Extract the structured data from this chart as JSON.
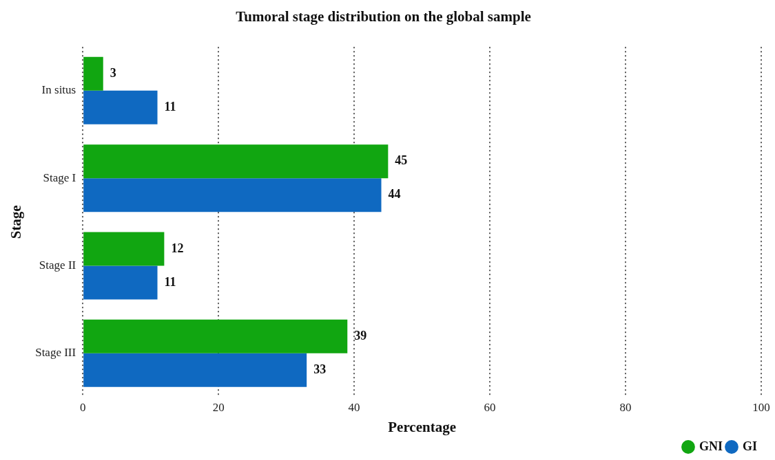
{
  "chart_data": {
    "type": "bar",
    "orientation": "horizontal",
    "title": "Tumoral stage distribution on the global sample",
    "xlabel": "Percentage",
    "ylabel": "Stage",
    "categories": [
      "In situs",
      "Stage I",
      "Stage II",
      "Stage III"
    ],
    "series": [
      {
        "name": "GNI",
        "color": "#11a611",
        "values": [
          3,
          45,
          12,
          39
        ]
      },
      {
        "name": "GI",
        "color": "#0f69c1",
        "values": [
          11,
          44,
          11,
          33
        ]
      }
    ],
    "xlim": [
      0,
      100
    ],
    "xticks": [
      0,
      20,
      40,
      60,
      80,
      100
    ],
    "grid": "x",
    "legend": "bottom right",
    "data_labels": true
  }
}
